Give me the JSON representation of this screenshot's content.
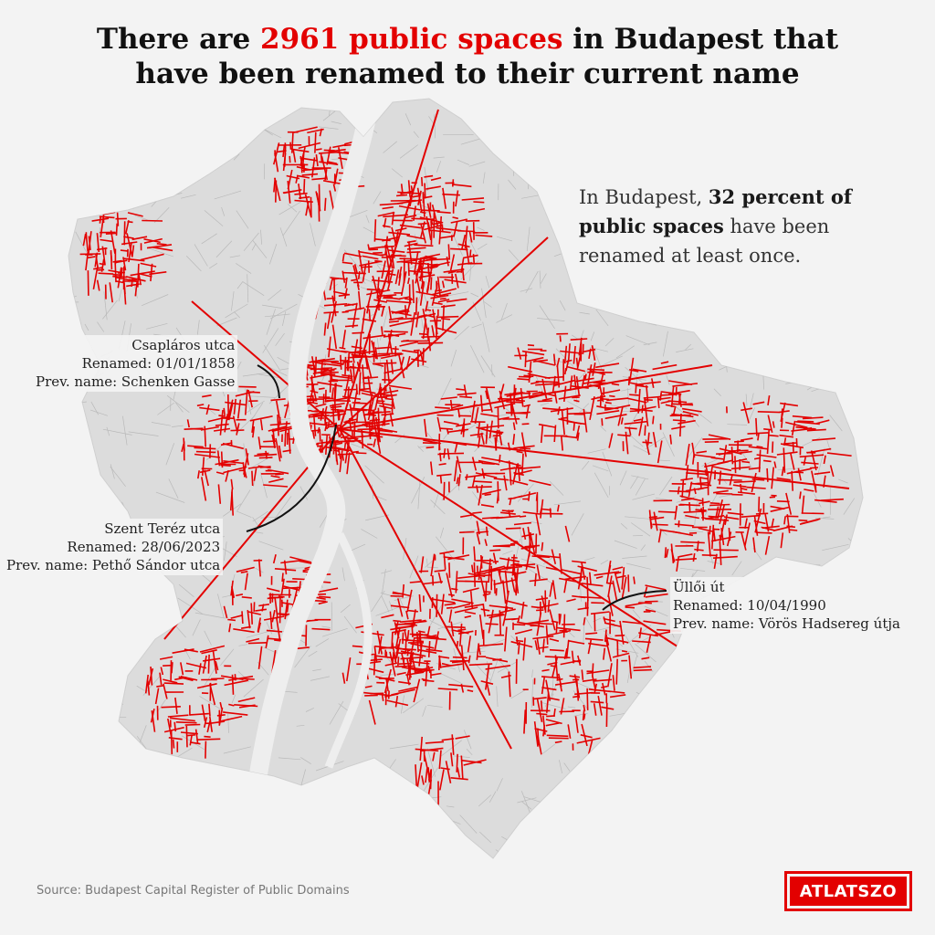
{
  "title": {
    "prefix": "There are ",
    "highlight": "2961 public spaces",
    "suffix": " in Budapest that",
    "line2": "have been renamed to their current name"
  },
  "stat": {
    "pre": "In Budapest, ",
    "bold": "32 percent of public spaces",
    "post": " have been renamed at least once."
  },
  "callouts": [
    {
      "name": "Csapláros utca",
      "renamed": "Renamed: 01/01/1858",
      "prev": "Prev. name: Schenken Gasse"
    },
    {
      "name": "Szent Teréz utca",
      "renamed": "Renamed: 28/06/2023",
      "prev": "Prev. name: Pethő Sándor utca"
    },
    {
      "name": "Üllői út",
      "renamed": "Renamed: 10/04/1990",
      "prev": "Prev. name: Vörös Hadsereg útja"
    }
  ],
  "source": "Source: Budapest Capital Register of Public Domains",
  "logo": "ATLATSZO",
  "colors": {
    "background": "#f3f3f3",
    "city_area": "#dcdcdc",
    "street_gray": "#b9b9b9",
    "renamed_street": "#e30000",
    "river": "#f3f3f3",
    "highlight": "#e30000"
  }
}
